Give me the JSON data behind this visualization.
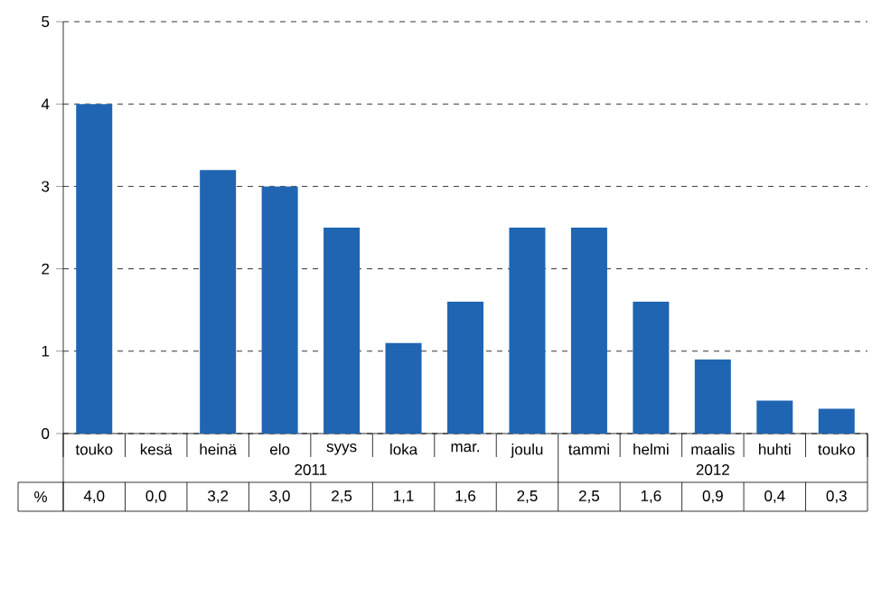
{
  "chart_data": {
    "type": "bar",
    "categories": [
      "touko",
      "kesä",
      "heinä",
      "elo",
      "syys",
      "loka",
      "mar.",
      "joulu",
      "tammi",
      "helmi",
      "maalis",
      "huhti",
      "touko"
    ],
    "values": [
      4.0,
      0.0,
      3.2,
      3.0,
      2.5,
      1.1,
      1.6,
      2.5,
      2.5,
      1.6,
      0.9,
      0.4,
      0.3
    ],
    "value_labels": [
      "4,0",
      "0,0",
      "3,2",
      "3,0",
      "2,5",
      "1,1",
      "1,6",
      "2,5",
      "2,5",
      "1,6",
      "0,9",
      "0,4",
      "0,3"
    ],
    "color": "#1f65b2",
    "ylim": [
      0,
      5
    ],
    "yticks": [
      0,
      1,
      2,
      3,
      4,
      5
    ],
    "grid": "y",
    "annotations": [
      "%",
      "2011",
      "2012"
    ]
  }
}
